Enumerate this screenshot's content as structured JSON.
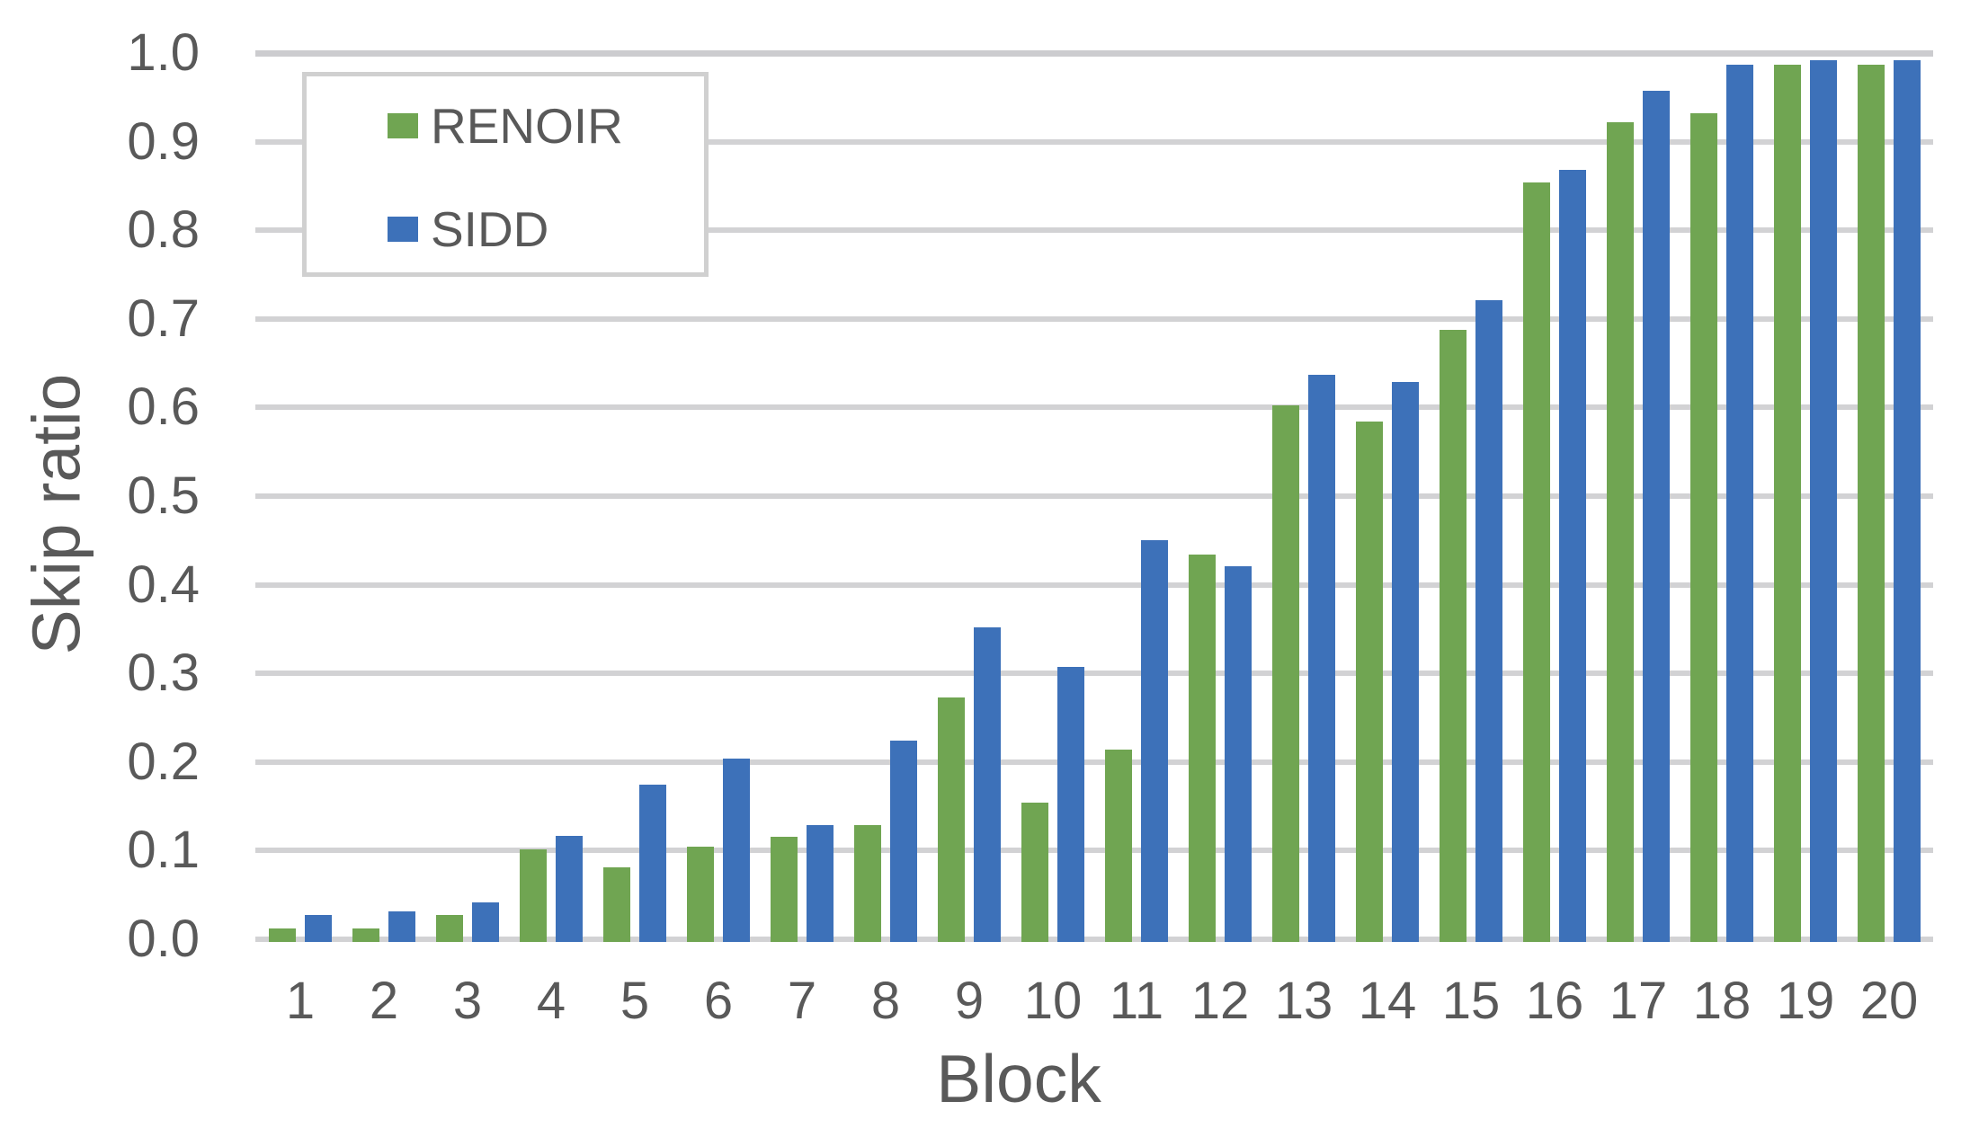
{
  "figure": {
    "background": "#ffffff",
    "text_color": "#595959",
    "gridline_color": "#d2d2d4"
  },
  "chart_data": {
    "type": "bar",
    "title": "",
    "xlabel": "Block",
    "ylabel": "Skip ratio",
    "categories": [
      "1",
      "2",
      "3",
      "4",
      "5",
      "6",
      "7",
      "8",
      "9",
      "10",
      "11",
      "12",
      "13",
      "14",
      "15",
      "16",
      "17",
      "18",
      "19",
      "20"
    ],
    "series": [
      {
        "name": "RENOIR",
        "color": "#70a552",
        "values": [
          0.012,
          0.012,
          0.027,
          0.101,
          0.081,
          0.104,
          0.116,
          0.129,
          0.273,
          0.154,
          0.214,
          0.434,
          0.602,
          0.584,
          0.688,
          0.854,
          0.922,
          0.932,
          0.987,
          0.987
        ]
      },
      {
        "name": "SIDD",
        "color": "#3d71b9",
        "values": [
          0.027,
          0.031,
          0.042,
          0.117,
          0.174,
          0.204,
          0.129,
          0.224,
          0.352,
          0.307,
          0.45,
          0.421,
          0.637,
          0.629,
          0.721,
          0.868,
          0.957,
          0.987,
          0.992,
          0.992
        ]
      }
    ],
    "ylim": [
      0.0,
      1.0
    ],
    "y_ticks": [
      "0.0",
      "0.1",
      "0.2",
      "0.3",
      "0.4",
      "0.5",
      "0.6",
      "0.7",
      "0.8",
      "0.9",
      "1.0"
    ],
    "grid": "horizontal",
    "legend": {
      "position": "top-left",
      "items": [
        "RENOIR",
        "SIDD"
      ]
    }
  }
}
